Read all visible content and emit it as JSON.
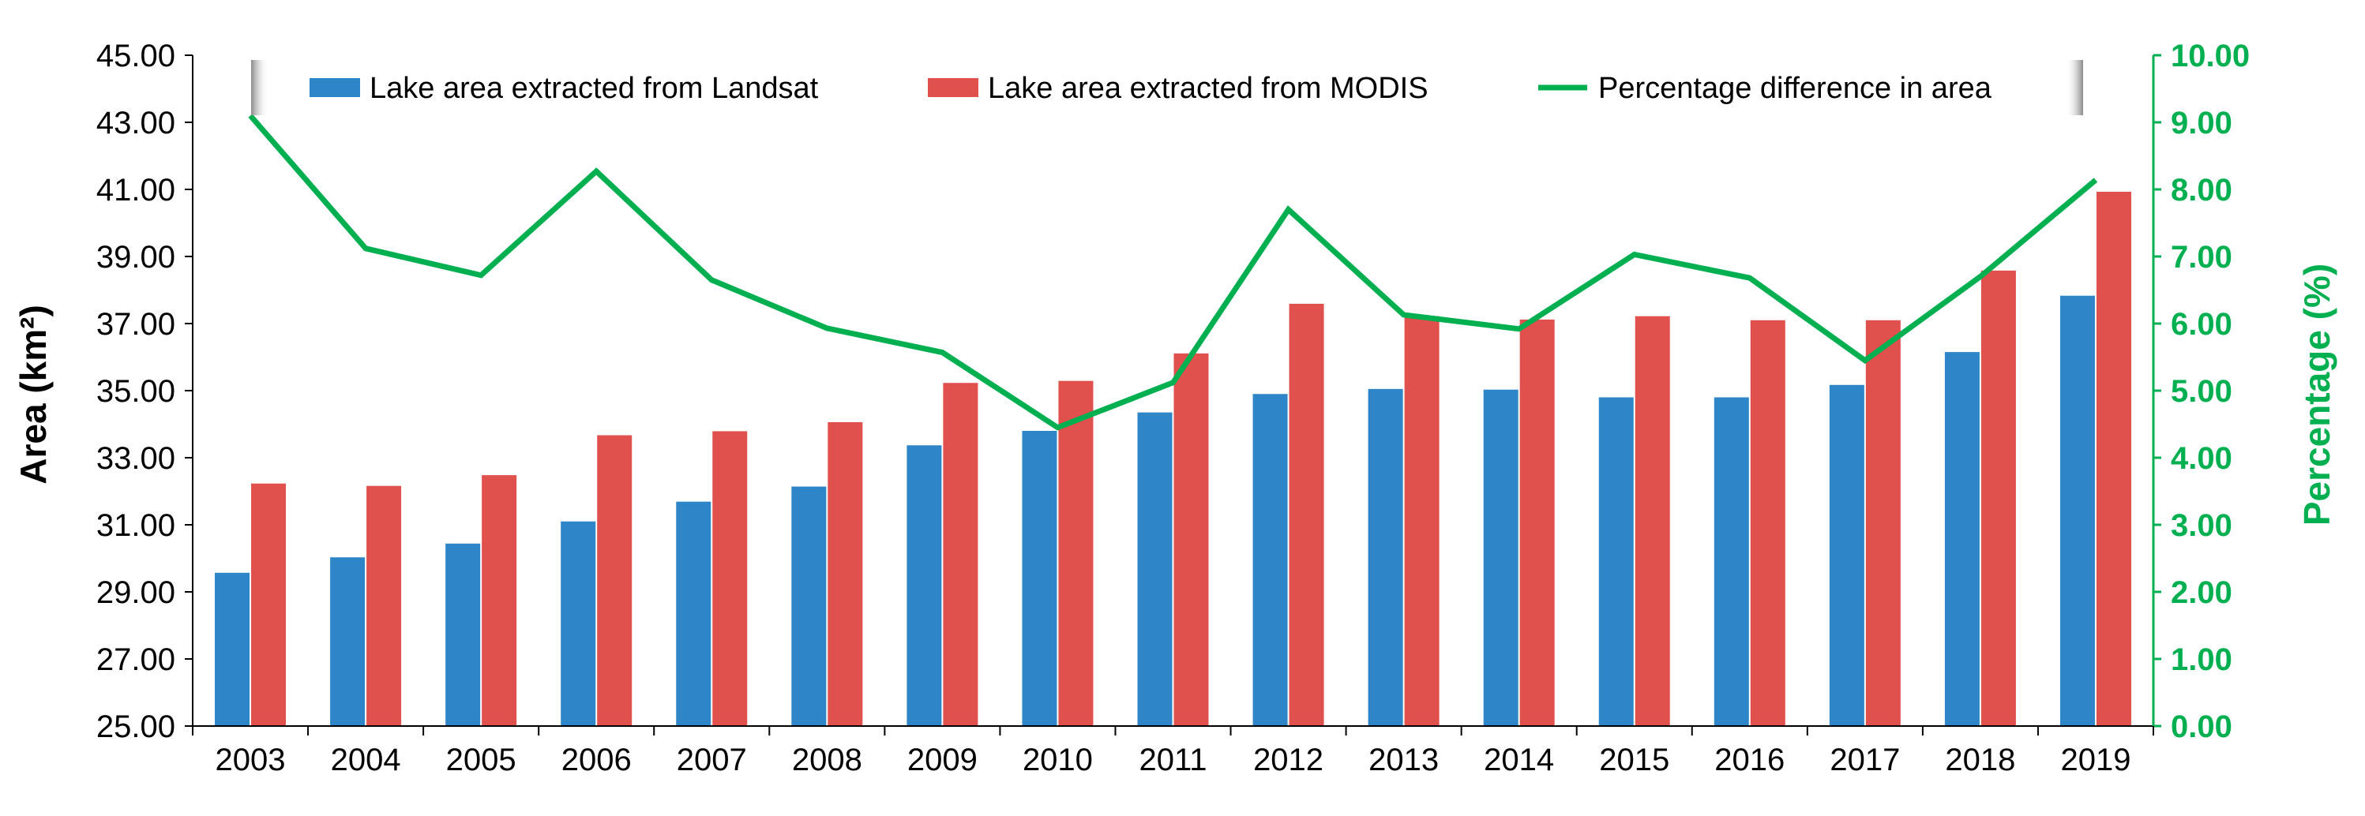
{
  "chart_data": {
    "type": "bar",
    "categories": [
      "2003",
      "2004",
      "2005",
      "2006",
      "2007",
      "2008",
      "2009",
      "2010",
      "2011",
      "2012",
      "2013",
      "2014",
      "2015",
      "2016",
      "2017",
      "2018",
      "2019"
    ],
    "series": [
      {
        "name": "Lake area extracted from Landsat",
        "type": "bar",
        "axis": "left",
        "color": "#2e86c8",
        "values": [
          29.57,
          30.03,
          30.44,
          31.1,
          31.69,
          32.14,
          33.37,
          33.8,
          34.35,
          34.9,
          35.05,
          35.03,
          34.8,
          34.8,
          35.17,
          36.15,
          37.83
        ]
      },
      {
        "name": "Lake area extracted from MODIS",
        "type": "bar",
        "axis": "left",
        "color": "#e0504c",
        "values": [
          32.23,
          32.16,
          32.48,
          33.67,
          33.79,
          34.06,
          35.23,
          35.29,
          36.11,
          37.59,
          37.22,
          37.12,
          37.22,
          37.1,
          37.1,
          38.58,
          40.93
        ]
      },
      {
        "name": "Percentage difference in area",
        "type": "line",
        "axis": "right",
        "color": "#00b050",
        "values": [
          9.1,
          7.12,
          6.72,
          8.27,
          6.65,
          5.93,
          5.57,
          4.45,
          5.12,
          7.7,
          6.13,
          5.92,
          7.03,
          6.68,
          5.45,
          6.7,
          8.14
        ]
      }
    ],
    "ylabel": "Area (km²)",
    "y2label": "Percentage (%)",
    "ylim": [
      25,
      45
    ],
    "y2lim": [
      0,
      10
    ],
    "yticks": [
      "25.00",
      "27.00",
      "29.00",
      "31.00",
      "33.00",
      "35.00",
      "37.00",
      "39.00",
      "41.00",
      "43.00",
      "45.00"
    ],
    "y2ticks": [
      "0.00",
      "1.00",
      "2.00",
      "3.00",
      "4.00",
      "5.00",
      "6.00",
      "7.00",
      "8.00",
      "9.00",
      "10.00"
    ],
    "legend_position": "top",
    "grid": false,
    "axis_colors": {
      "left": "#000000",
      "right": "#00b050"
    }
  }
}
